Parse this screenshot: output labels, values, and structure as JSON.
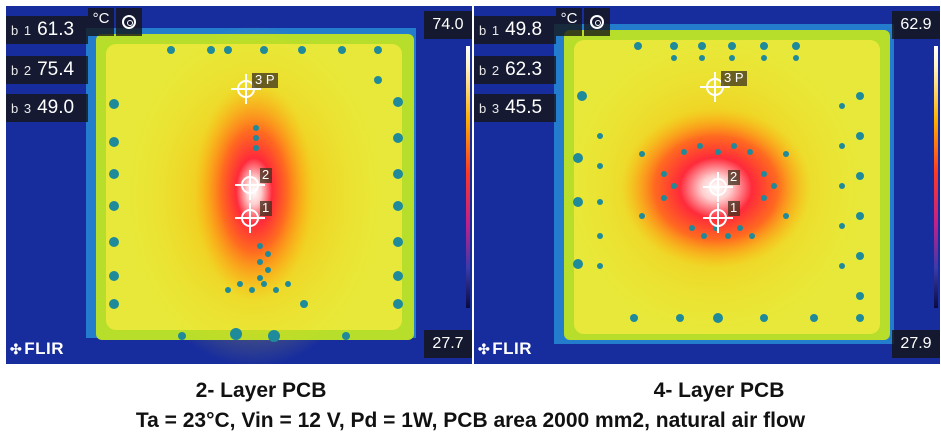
{
  "left_panel": {
    "readouts": [
      {
        "tag": "b 1",
        "value": "61.3"
      },
      {
        "tag": "b 2",
        "value": "75.4"
      },
      {
        "tag": "b 3",
        "value": "49.0"
      }
    ],
    "unit": "°C",
    "scale_max": "74.0",
    "scale_min": "27.7",
    "logo": "FLIR",
    "markers": [
      "3 P",
      "2",
      "1"
    ]
  },
  "right_panel": {
    "readouts": [
      {
        "tag": "b 1",
        "value": "49.8"
      },
      {
        "tag": "b 2",
        "value": "62.3"
      },
      {
        "tag": "b 3",
        "value": "45.5"
      }
    ],
    "unit": "°C",
    "scale_max": "62.9",
    "scale_min": "27.9",
    "logo": "FLIR",
    "markers": [
      "3 P",
      "2",
      "1"
    ]
  },
  "captions": {
    "left": "2- Layer PCB",
    "right": "4- Layer PCB",
    "bottom": "Ta = 23°C, Vin = 12 V, Pd = 1W, PCB area 2000 mm2, natural air flow"
  },
  "icons": [
    "camera-mode-icon",
    "crosshair-icon",
    "flir-logo-icon"
  ]
}
